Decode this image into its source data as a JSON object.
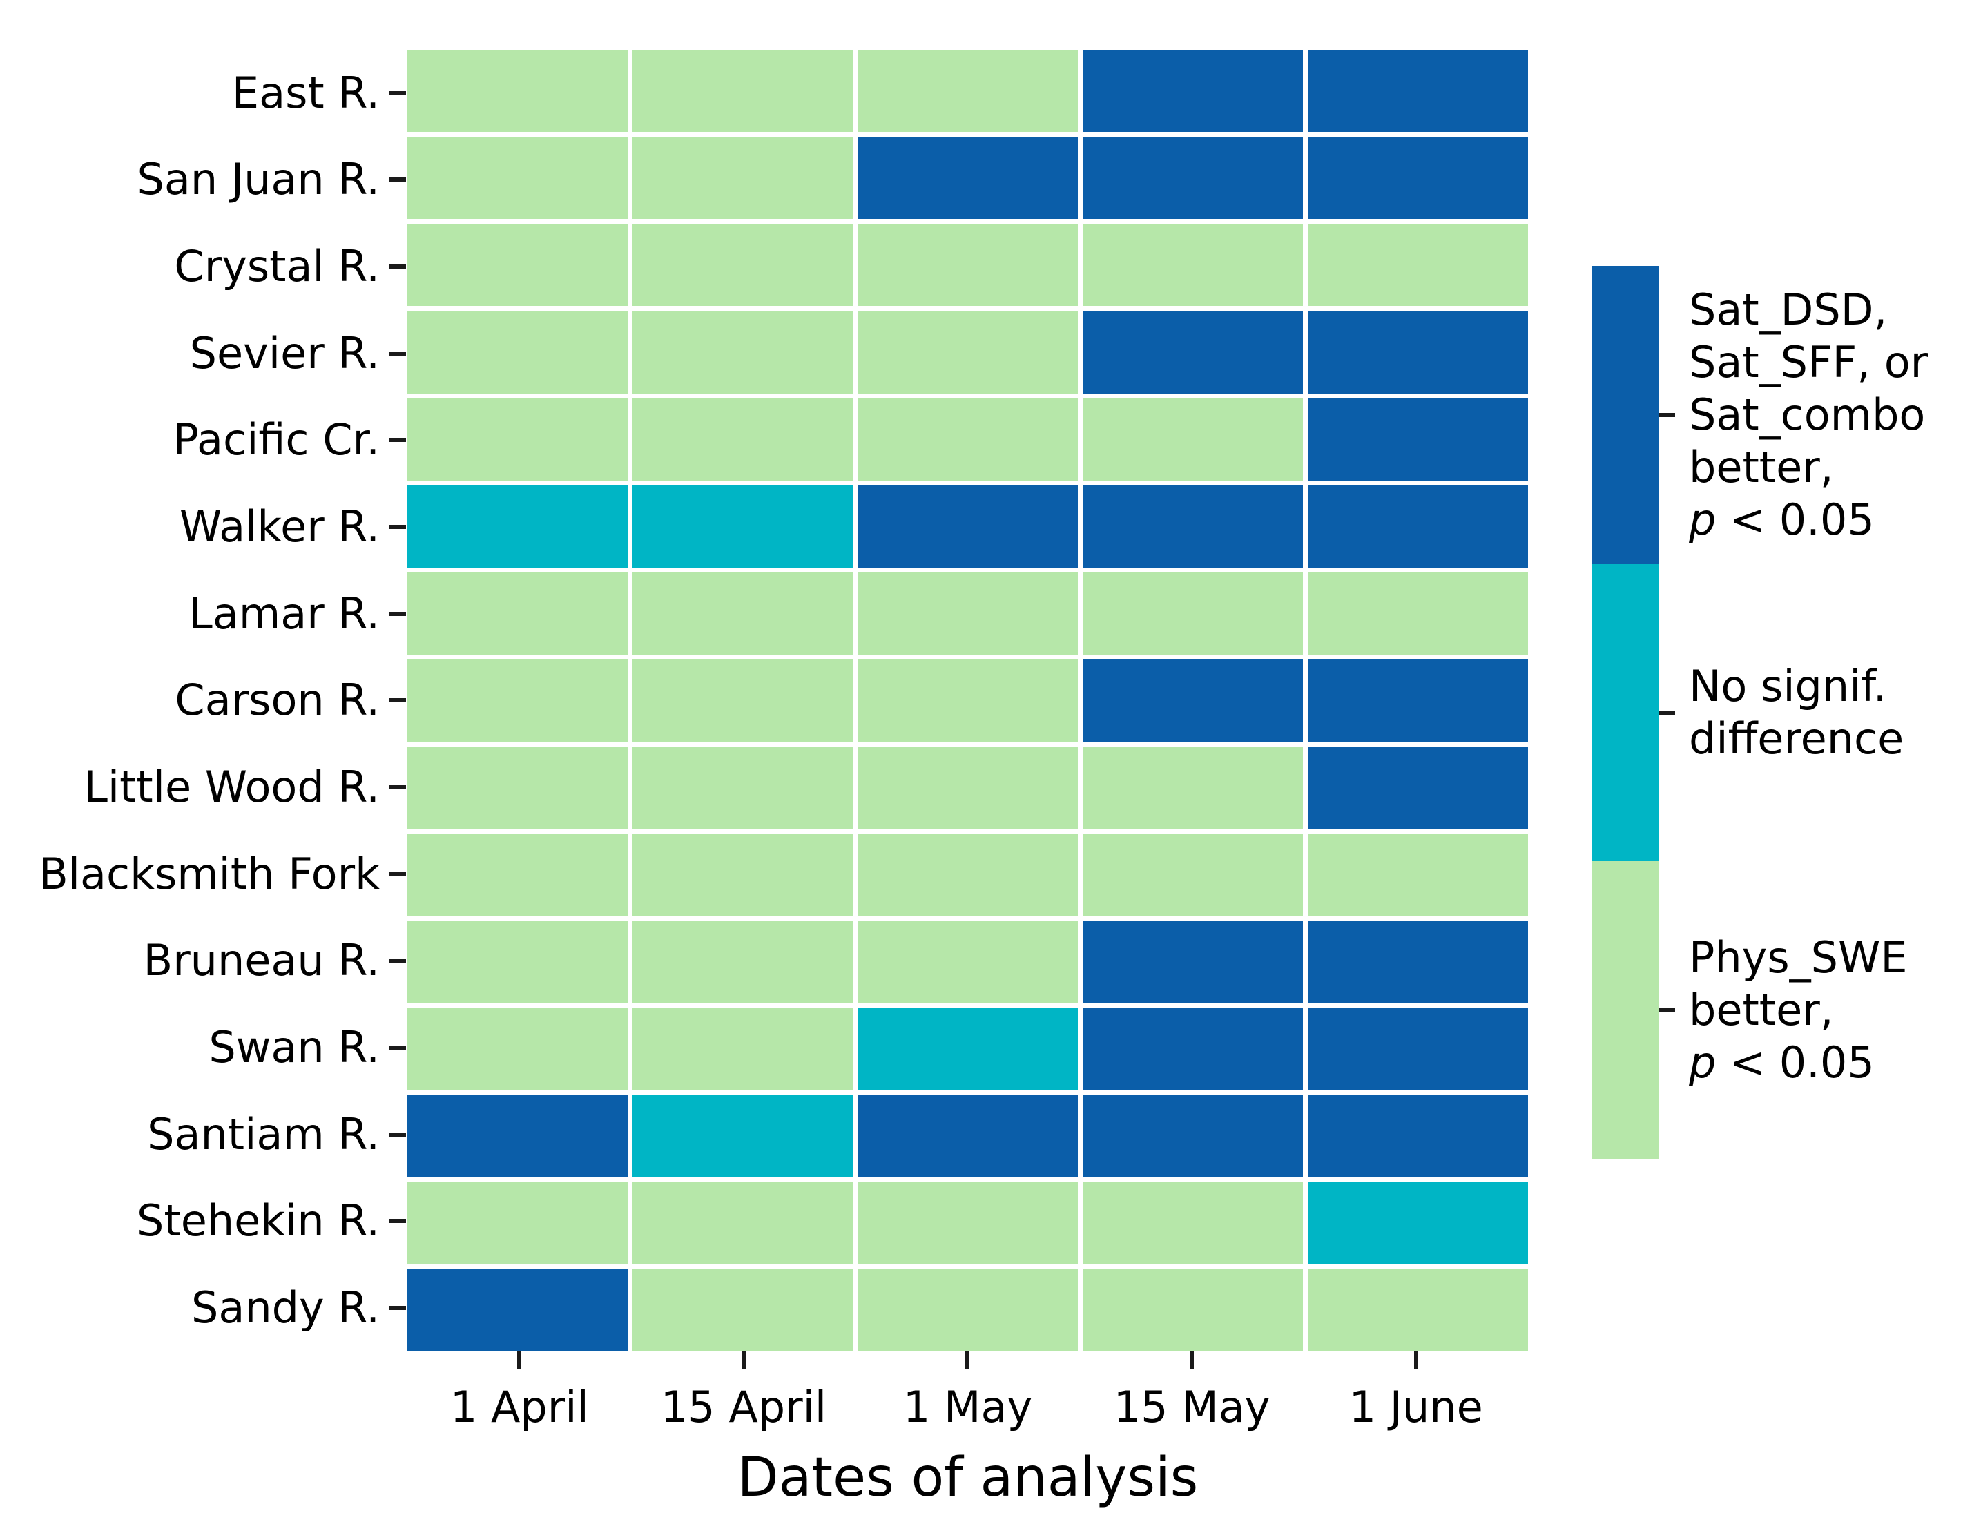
{
  "colors": {
    "background": "#FFFFFF",
    "text": "#000000",
    "tick": "#1A1A1A",
    "grid_line": "#FFFFFF",
    "sat_better": "#0B5EA9",
    "no_diff": "#00B5C5",
    "phys_better": "#B6E7A9"
  },
  "chart_data": {
    "type": "heatmap",
    "title": "",
    "xlabel": "Dates of analysis",
    "ylabel": "",
    "x": [
      "1 April",
      "15 April",
      "1 May",
      "15 May",
      "1 June"
    ],
    "y": [
      "East R.",
      "San Juan R.",
      "Crystal R.",
      "Sevier R.",
      "Pacific Cr.",
      "Walker R.",
      "Lamar R.",
      "Carson R.",
      "Little Wood R.",
      "Blacksmith Fork",
      "Bruneau R.",
      "Swan R.",
      "Santiam R.",
      "Stehekin R.",
      "Sandy R."
    ],
    "legend_position": "right-colorbar",
    "legend": [
      {
        "code": "sat_better",
        "color": "#0B5EA9",
        "label": "Sat_DSD,\nSat_SFF, or\nSat_combo\nbetter,\np < 0.05"
      },
      {
        "code": "no_diff",
        "color": "#00B5C5",
        "label": "No signif.\ndifference"
      },
      {
        "code": "phys_better",
        "color": "#B6E7A9",
        "label": "Phys_SWE\nbetter,\np < 0.05"
      }
    ],
    "values": [
      [
        "phys_better",
        "phys_better",
        "phys_better",
        "sat_better",
        "sat_better"
      ],
      [
        "phys_better",
        "phys_better",
        "sat_better",
        "sat_better",
        "sat_better"
      ],
      [
        "phys_better",
        "phys_better",
        "phys_better",
        "phys_better",
        "phys_better"
      ],
      [
        "phys_better",
        "phys_better",
        "phys_better",
        "sat_better",
        "sat_better"
      ],
      [
        "phys_better",
        "phys_better",
        "phys_better",
        "phys_better",
        "sat_better"
      ],
      [
        "no_diff",
        "no_diff",
        "sat_better",
        "sat_better",
        "sat_better"
      ],
      [
        "phys_better",
        "phys_better",
        "phys_better",
        "phys_better",
        "phys_better"
      ],
      [
        "phys_better",
        "phys_better",
        "phys_better",
        "sat_better",
        "sat_better"
      ],
      [
        "phys_better",
        "phys_better",
        "phys_better",
        "phys_better",
        "sat_better"
      ],
      [
        "phys_better",
        "phys_better",
        "phys_better",
        "phys_better",
        "phys_better"
      ],
      [
        "phys_better",
        "phys_better",
        "phys_better",
        "sat_better",
        "sat_better"
      ],
      [
        "phys_better",
        "phys_better",
        "no_diff",
        "sat_better",
        "sat_better"
      ],
      [
        "sat_better",
        "no_diff",
        "sat_better",
        "sat_better",
        "sat_better"
      ],
      [
        "phys_better",
        "phys_better",
        "phys_better",
        "phys_better",
        "no_diff"
      ],
      [
        "sat_better",
        "phys_better",
        "phys_better",
        "phys_better",
        "phys_better"
      ]
    ]
  }
}
